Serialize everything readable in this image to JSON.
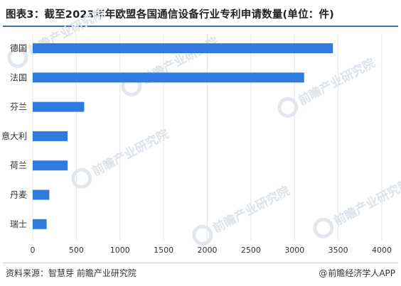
{
  "header": {
    "title": "图表3：截至2023年年欧盟各国通信设备行业专利申请数量(单位：件)"
  },
  "footer": {
    "source": "资料来源：智慧芽 前瞻产业研究院",
    "brand_symbol": "@",
    "brand": "前瞻经济学人APP"
  },
  "watermark": {
    "text": "前瞻产业研究院"
  },
  "colors": {
    "bar": "#2f7be0",
    "accent_rule": "#3f6fb0",
    "grid": "#e6e6e6"
  },
  "chart_data": {
    "type": "bar",
    "orientation": "horizontal",
    "title": "图表3：截至2023年年欧盟各国通信设备行业专利申请数量(单位：件)",
    "categories": [
      "德国",
      "法国",
      "芬兰",
      "意大利",
      "荷兰",
      "丹麦",
      "瑞士"
    ],
    "values": [
      3440,
      3110,
      590,
      400,
      400,
      190,
      160
    ],
    "xlim": [
      0,
      4000
    ],
    "xticks": [
      "0",
      "500",
      "1000",
      "1500",
      "2000",
      "2500",
      "3000",
      "3500",
      "4000"
    ],
    "xlabel": "",
    "ylabel": "",
    "grid": true,
    "legend": "none"
  }
}
